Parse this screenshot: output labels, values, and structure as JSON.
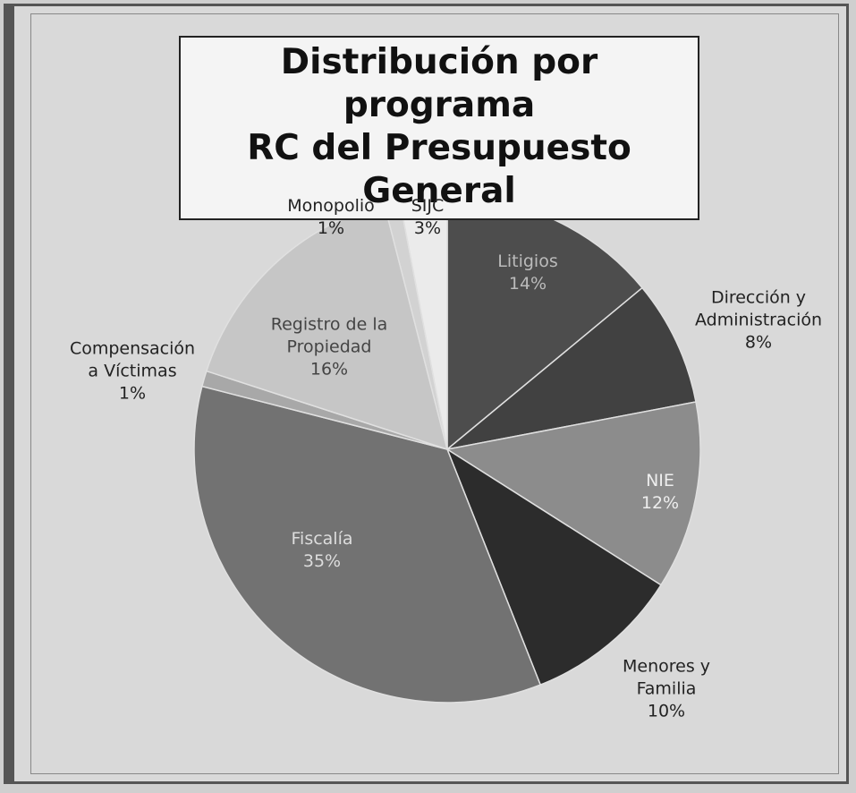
{
  "chart_data": {
    "type": "pie",
    "title": "Distribución por programa\nRC del Presupuesto General",
    "categories": [
      "Litigios",
      "Dirección y\nAdministración",
      "NIE",
      "Menores y\nFamilia",
      "Fiscalía",
      "Compensación\na Víctimas",
      "Registro de la\nPropiedad",
      "Monopolio",
      "SIJC"
    ],
    "values": [
      14,
      8,
      12,
      10,
      35,
      1,
      16,
      1,
      3
    ],
    "value_labels": [
      "14%",
      "8%",
      "12%",
      "10%",
      "35%",
      "1%",
      "16%",
      "1%",
      "3%"
    ],
    "colors": [
      "#4d4d4d",
      "#414141",
      "#8c8c8c",
      "#2c2c2c",
      "#727272",
      "#a8a8a8",
      "#c6c6c6",
      "#d2d2d2",
      "#ebebeb"
    ]
  }
}
